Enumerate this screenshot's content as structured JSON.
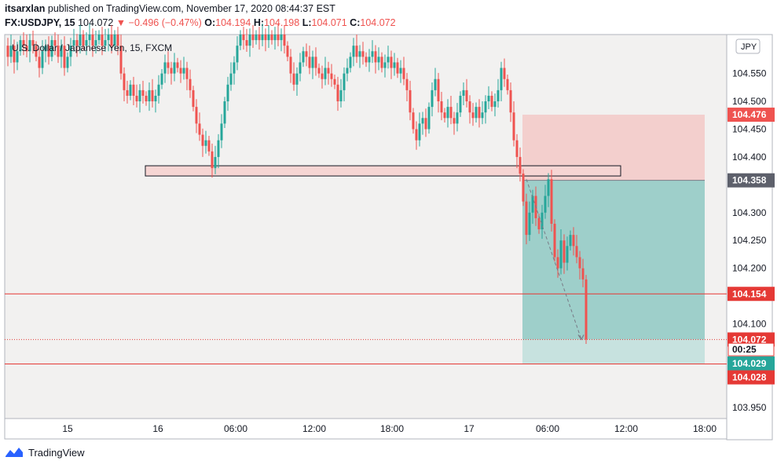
{
  "header": {
    "author": "itsarxlan",
    "published_text": "published on TradingView.com, November 17, 2020 08:44:37 EST",
    "symbol": "FX:USDJPY, 15",
    "last": "104.072",
    "change": "−0.496 (−0.47%)",
    "o_label": "O:",
    "o_val": "104.194",
    "h_label": "H:",
    "h_val": "104.198",
    "l_label": "L:",
    "l_val": "104.071",
    "c_label": "C:",
    "c_val": "104.072"
  },
  "legend": {
    "title": "U.S. Dollar / Japanese Yen, 15, FXCM"
  },
  "currency": "JPY",
  "footer": {
    "brand": "TradingView"
  },
  "colors": {
    "up": "#26a69a",
    "down": "#ef5350",
    "profit": "#9ecfca",
    "loss": "#f3cfcd",
    "zone": "#f6d5d3"
  },
  "chart_data": {
    "type": "candlestick",
    "ylim": [
      103.93,
      104.62
    ],
    "y_ticks": [
      "104.550",
      "104.500",
      "104.450",
      "104.400",
      "104.300",
      "104.250",
      "104.200",
      "104.100",
      "103.950"
    ],
    "x_ticks": [
      "15",
      "16",
      "06:00",
      "12:00",
      "18:00",
      "17",
      "06:00",
      "12:00",
      "18:00"
    ],
    "price_labels": [
      {
        "value": "104.476",
        "kind": "stop"
      },
      {
        "value": "104.358",
        "kind": "entry"
      },
      {
        "value": "104.154",
        "kind": "level"
      },
      {
        "value": "104.072",
        "kind": "last"
      },
      {
        "value": "00:25",
        "kind": "countdown"
      },
      {
        "value": "104.029",
        "kind": "target"
      },
      {
        "value": "104.028",
        "kind": "level"
      }
    ],
    "levels": {
      "stop": 104.476,
      "entry": 104.358,
      "target": 104.029,
      "line1": 104.154,
      "line2": 104.028,
      "last": 104.072,
      "zone_top": 104.38,
      "zone_bottom": 104.365
    },
    "series": [
      {
        "x": 0,
        "v": 104.6
      },
      {
        "x": 4,
        "v": 104.58
      },
      {
        "x": 8,
        "v": 104.6
      },
      {
        "x": 12,
        "v": 104.57
      },
      {
        "x": 16,
        "v": 104.59
      },
      {
        "x": 20,
        "v": 104.61
      },
      {
        "x": 24,
        "v": 104.6
      },
      {
        "x": 28,
        "v": 104.59
      },
      {
        "x": 32,
        "v": 104.61
      },
      {
        "x": 36,
        "v": 104.6
      },
      {
        "x": 40,
        "v": 104.58
      },
      {
        "x": 44,
        "v": 104.56
      },
      {
        "x": 48,
        "v": 104.59
      },
      {
        "x": 52,
        "v": 104.6
      },
      {
        "x": 56,
        "v": 104.58
      },
      {
        "x": 60,
        "v": 104.61
      },
      {
        "x": 64,
        "v": 104.6
      },
      {
        "x": 68,
        "v": 104.58
      },
      {
        "x": 72,
        "v": 104.6
      },
      {
        "x": 76,
        "v": 104.56
      },
      {
        "x": 80,
        "v": 104.58
      },
      {
        "x": 84,
        "v": 104.6
      },
      {
        "x": 88,
        "v": 104.61
      },
      {
        "x": 92,
        "v": 104.6
      },
      {
        "x": 96,
        "v": 104.62
      },
      {
        "x": 100,
        "v": 104.6
      },
      {
        "x": 104,
        "v": 104.61
      },
      {
        "x": 108,
        "v": 104.62
      },
      {
        "x": 112,
        "v": 104.6
      },
      {
        "x": 116,
        "v": 104.61
      },
      {
        "x": 120,
        "v": 104.62
      },
      {
        "x": 124,
        "v": 104.6
      },
      {
        "x": 128,
        "v": 104.61
      },
      {
        "x": 132,
        "v": 104.62
      },
      {
        "x": 136,
        "v": 104.6
      },
      {
        "x": 140,
        "v": 104.62
      },
      {
        "x": 144,
        "v": 104.6
      },
      {
        "x": 148,
        "v": 104.55
      },
      {
        "x": 152,
        "v": 104.52
      },
      {
        "x": 156,
        "v": 104.51
      },
      {
        "x": 160,
        "v": 104.53
      },
      {
        "x": 164,
        "v": 104.51
      },
      {
        "x": 168,
        "v": 104.5
      },
      {
        "x": 172,
        "v": 104.52
      },
      {
        "x": 176,
        "v": 104.51
      },
      {
        "x": 180,
        "v": 104.5
      },
      {
        "x": 184,
        "v": 104.52
      },
      {
        "x": 188,
        "v": 104.5
      },
      {
        "x": 192,
        "v": 104.51
      },
      {
        "x": 196,
        "v": 104.53
      },
      {
        "x": 200,
        "v": 104.55
      },
      {
        "x": 204,
        "v": 104.57
      },
      {
        "x": 208,
        "v": 104.56
      },
      {
        "x": 212,
        "v": 104.55
      },
      {
        "x": 216,
        "v": 104.57
      },
      {
        "x": 220,
        "v": 104.56
      },
      {
        "x": 224,
        "v": 104.55
      },
      {
        "x": 228,
        "v": 104.56
      },
      {
        "x": 232,
        "v": 104.54
      },
      {
        "x": 236,
        "v": 104.52
      },
      {
        "x": 240,
        "v": 104.49
      },
      {
        "x": 244,
        "v": 104.46
      },
      {
        "x": 248,
        "v": 104.44
      },
      {
        "x": 252,
        "v": 104.42
      },
      {
        "x": 256,
        "v": 104.43
      },
      {
        "x": 260,
        "v": 104.41
      },
      {
        "x": 264,
        "v": 104.38
      },
      {
        "x": 268,
        "v": 104.4
      },
      {
        "x": 272,
        "v": 104.43
      },
      {
        "x": 276,
        "v": 104.46
      },
      {
        "x": 280,
        "v": 104.5
      },
      {
        "x": 284,
        "v": 104.53
      },
      {
        "x": 288,
        "v": 104.55
      },
      {
        "x": 292,
        "v": 104.57
      },
      {
        "x": 296,
        "v": 104.6
      },
      {
        "x": 300,
        "v": 104.62
      },
      {
        "x": 304,
        "v": 104.61
      },
      {
        "x": 308,
        "v": 104.6
      },
      {
        "x": 312,
        "v": 104.62
      },
      {
        "x": 316,
        "v": 104.61
      },
      {
        "x": 320,
        "v": 104.62
      },
      {
        "x": 324,
        "v": 104.61
      },
      {
        "x": 328,
        "v": 104.62
      },
      {
        "x": 332,
        "v": 104.61
      },
      {
        "x": 336,
        "v": 104.62
      },
      {
        "x": 340,
        "v": 104.61
      },
      {
        "x": 344,
        "v": 104.62
      },
      {
        "x": 348,
        "v": 104.61
      },
      {
        "x": 352,
        "v": 104.62
      },
      {
        "x": 356,
        "v": 104.6
      },
      {
        "x": 360,
        "v": 104.58
      },
      {
        "x": 364,
        "v": 104.55
      },
      {
        "x": 368,
        "v": 104.53
      },
      {
        "x": 372,
        "v": 104.55
      },
      {
        "x": 376,
        "v": 104.57
      },
      {
        "x": 380,
        "v": 104.59
      },
      {
        "x": 384,
        "v": 104.58
      },
      {
        "x": 388,
        "v": 104.56
      },
      {
        "x": 392,
        "v": 104.58
      },
      {
        "x": 396,
        "v": 104.56
      },
      {
        "x": 400,
        "v": 104.55
      },
      {
        "x": 404,
        "v": 104.54
      },
      {
        "x": 408,
        "v": 104.56
      },
      {
        "x": 412,
        "v": 104.55
      },
      {
        "x": 416,
        "v": 104.54
      },
      {
        "x": 420,
        "v": 104.53
      },
      {
        "x": 424,
        "v": 104.5
      },
      {
        "x": 428,
        "v": 104.52
      },
      {
        "x": 432,
        "v": 104.55
      },
      {
        "x": 436,
        "v": 104.56
      },
      {
        "x": 440,
        "v": 104.58
      },
      {
        "x": 444,
        "v": 104.6
      },
      {
        "x": 448,
        "v": 104.58
      },
      {
        "x": 452,
        "v": 104.59
      },
      {
        "x": 456,
        "v": 104.58
      },
      {
        "x": 460,
        "v": 104.57
      },
      {
        "x": 464,
        "v": 104.58
      },
      {
        "x": 468,
        "v": 104.59
      },
      {
        "x": 472,
        "v": 104.57
      },
      {
        "x": 476,
        "v": 104.58
      },
      {
        "x": 480,
        "v": 104.56
      },
      {
        "x": 484,
        "v": 104.57
      },
      {
        "x": 488,
        "v": 104.58
      },
      {
        "x": 492,
        "v": 104.56
      },
      {
        "x": 496,
        "v": 104.57
      },
      {
        "x": 500,
        "v": 104.55
      },
      {
        "x": 504,
        "v": 104.56
      },
      {
        "x": 508,
        "v": 104.54
      },
      {
        "x": 512,
        "v": 104.52
      },
      {
        "x": 516,
        "v": 104.48
      },
      {
        "x": 520,
        "v": 104.45
      },
      {
        "x": 524,
        "v": 104.43
      },
      {
        "x": 528,
        "v": 104.46
      },
      {
        "x": 532,
        "v": 104.47
      },
      {
        "x": 536,
        "v": 104.45
      },
      {
        "x": 540,
        "v": 104.49
      },
      {
        "x": 544,
        "v": 104.52
      },
      {
        "x": 548,
        "v": 104.54
      },
      {
        "x": 552,
        "v": 104.5
      },
      {
        "x": 556,
        "v": 104.48
      },
      {
        "x": 560,
        "v": 104.47
      },
      {
        "x": 564,
        "v": 104.49
      },
      {
        "x": 568,
        "v": 104.47
      },
      {
        "x": 572,
        "v": 104.46
      },
      {
        "x": 576,
        "v": 104.48
      },
      {
        "x": 580,
        "v": 104.51
      },
      {
        "x": 584,
        "v": 104.52
      },
      {
        "x": 588,
        "v": 104.5
      },
      {
        "x": 592,
        "v": 104.48
      },
      {
        "x": 596,
        "v": 104.47
      },
      {
        "x": 600,
        "v": 104.49
      },
      {
        "x": 604,
        "v": 104.47
      },
      {
        "x": 608,
        "v": 104.48
      },
      {
        "x": 612,
        "v": 104.5
      },
      {
        "x": 616,
        "v": 104.51
      },
      {
        "x": 620,
        "v": 104.49
      },
      {
        "x": 624,
        "v": 104.5
      },
      {
        "x": 628,
        "v": 104.52
      },
      {
        "x": 632,
        "v": 104.56
      },
      {
        "x": 636,
        "v": 104.54
      },
      {
        "x": 640,
        "v": 104.52
      },
      {
        "x": 644,
        "v": 104.48
      },
      {
        "x": 648,
        "v": 104.43
      },
      {
        "x": 652,
        "v": 104.4
      },
      {
        "x": 656,
        "v": 104.37
      },
      {
        "x": 660,
        "v": 104.32
      },
      {
        "x": 664,
        "v": 104.26
      },
      {
        "x": 668,
        "v": 104.3
      },
      {
        "x": 672,
        "v": 104.33
      },
      {
        "x": 676,
        "v": 104.29
      },
      {
        "x": 680,
        "v": 104.27
      },
      {
        "x": 684,
        "v": 104.3
      },
      {
        "x": 688,
        "v": 104.33
      },
      {
        "x": 692,
        "v": 104.36
      },
      {
        "x": 696,
        "v": 104.28
      },
      {
        "x": 700,
        "v": 104.22
      },
      {
        "x": 704,
        "v": 104.2
      },
      {
        "x": 708,
        "v": 104.25
      },
      {
        "x": 712,
        "v": 104.21
      },
      {
        "x": 716,
        "v": 104.24
      },
      {
        "x": 720,
        "v": 104.26
      },
      {
        "x": 724,
        "v": 104.24
      },
      {
        "x": 728,
        "v": 104.22
      },
      {
        "x": 732,
        "v": 104.2
      },
      {
        "x": 736,
        "v": 104.18
      },
      {
        "x": 740,
        "v": 104.072
      }
    ]
  }
}
